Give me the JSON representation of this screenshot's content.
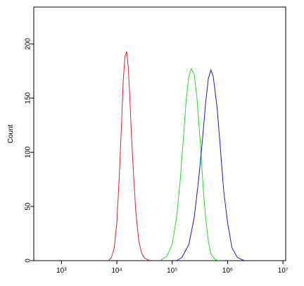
{
  "chart_data": {
    "type": "line",
    "y_label": "Count",
    "xscale": "log",
    "xlim": [
      316,
      11220000
    ],
    "ylim": [
      0,
      234
    ],
    "xticks": [
      {
        "value": 1000,
        "label": "10³"
      },
      {
        "value": 10000,
        "label": "10⁴"
      },
      {
        "value": 100000,
        "label": "10⁵"
      },
      {
        "value": 1000000,
        "label": "10⁶"
      },
      {
        "value": 10000000,
        "label": "10⁷"
      }
    ],
    "yticks": [
      0,
      50,
      100,
      150,
      200
    ],
    "series": [
      {
        "color": "#e0202a",
        "x": [
          7000,
          8000,
          9000,
          10000,
          11000,
          12000,
          13000,
          14000,
          15000,
          16000,
          17000,
          18000,
          20000,
          22000,
          25000,
          28000,
          32000,
          40000
        ],
        "values": [
          0,
          3,
          12,
          35,
          75,
          120,
          165,
          188,
          193,
          180,
          155,
          125,
          80,
          45,
          18,
          7,
          2,
          0
        ]
      },
      {
        "color": "#22dd22",
        "x": [
          60000,
          80000,
          100000,
          120000,
          140000,
          160000,
          180000,
          200000,
          220000,
          250000,
          280000,
          320000,
          360000,
          400000,
          450000,
          500000,
          600000,
          700000
        ],
        "values": [
          0,
          4,
          15,
          40,
          75,
          115,
          150,
          170,
          177,
          172,
          150,
          110,
          70,
          40,
          18,
          6,
          1,
          0
        ]
      },
      {
        "color": "#1a1ad0",
        "x": [
          120000,
          150000,
          200000,
          250000,
          300000,
          350000,
          400000,
          450000,
          500000,
          550000,
          650000,
          750000,
          850000,
          1000000,
          1200000,
          1500000,
          2000000
        ],
        "values": [
          0,
          3,
          15,
          40,
          75,
          110,
          145,
          168,
          176,
          170,
          140,
          100,
          65,
          35,
          12,
          3,
          0
        ]
      }
    ]
  }
}
